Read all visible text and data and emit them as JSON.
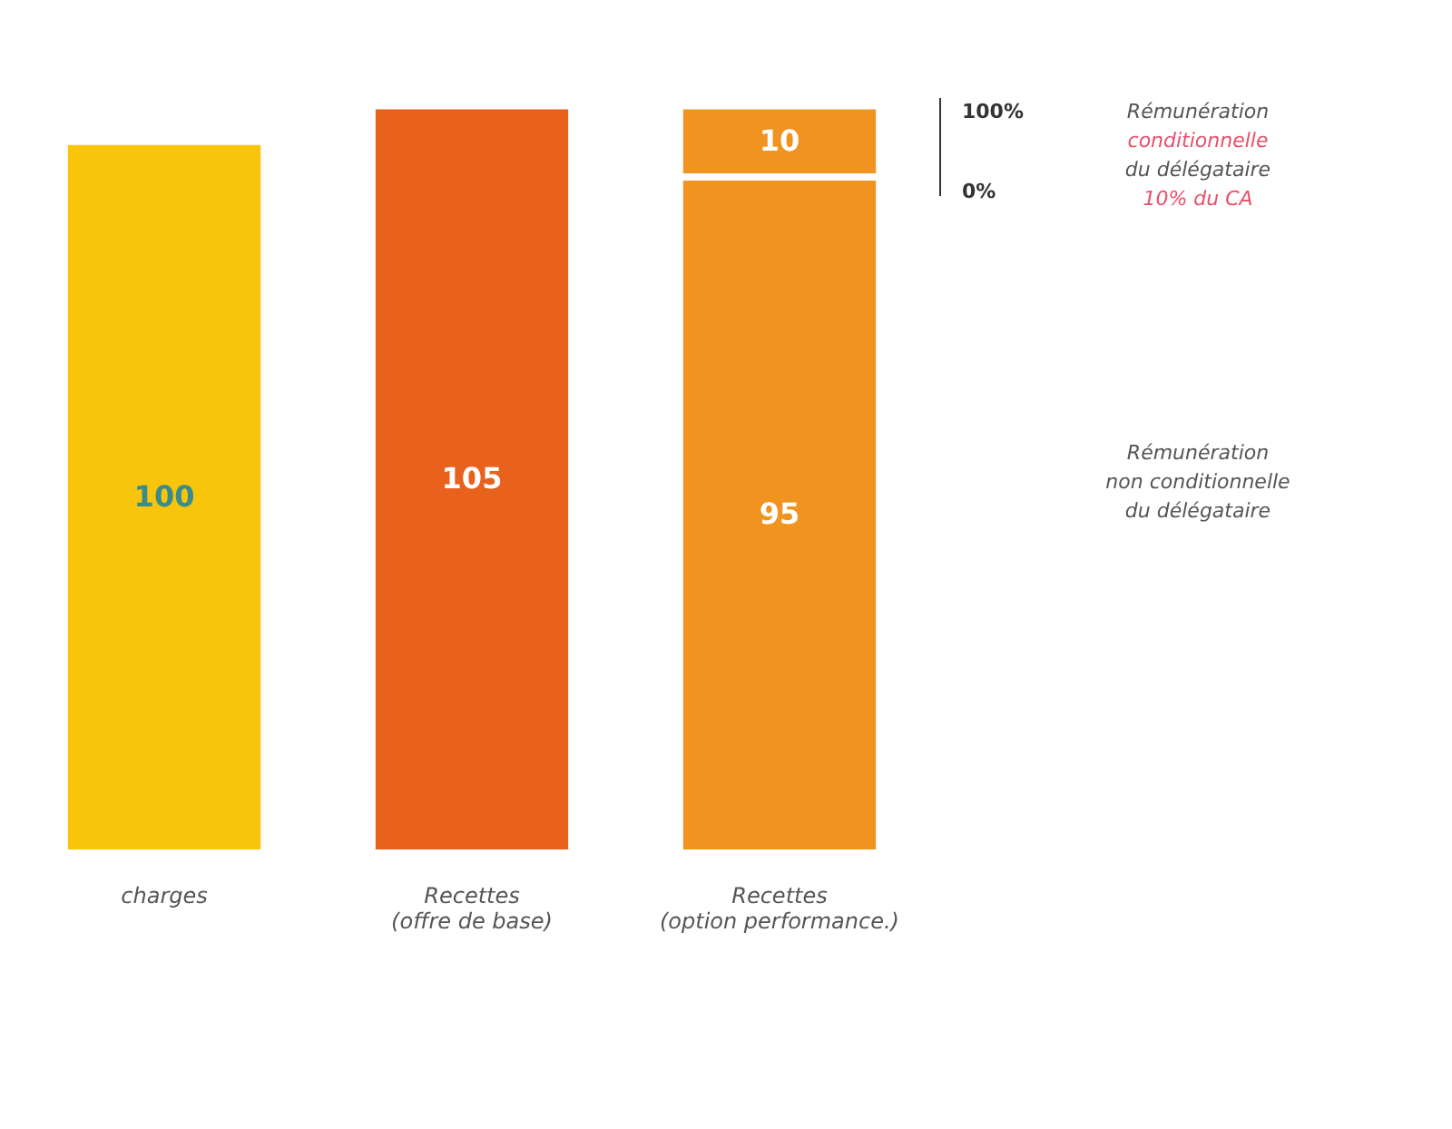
{
  "chart_data": {
    "type": "bar",
    "stacked": true,
    "data_labels": true,
    "categories": [
      "charges",
      "Recettes\n(offre de base)",
      "Recettes\n(option performance.)"
    ],
    "series": [
      {
        "colors": [
          "#f9c40c",
          "#e8611d",
          "#f0931f"
        ],
        "values": [
          100,
          105,
          95
        ]
      },
      {
        "color": "#f0931f",
        "values": [
          null,
          null,
          10
        ]
      }
    ],
    "annotations": [
      "100%",
      "0%",
      "Rémunération",
      "conditionnelle",
      "du délégataire",
      "10% du CA",
      "Rémunération",
      "non conditionnelle",
      "du délégataire"
    ]
  }
}
